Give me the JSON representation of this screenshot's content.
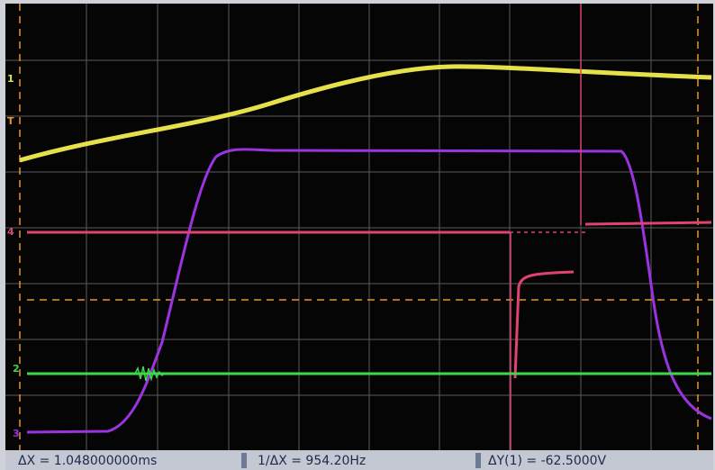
{
  "markers": {
    "ch1": "1",
    "trigger": "T",
    "ch4": "4",
    "ch2": "2",
    "ch3": "3"
  },
  "status_bar": {
    "delta_x": "ΔX = 1.048000000ms",
    "inverse_delta_x": "1/ΔX = 954.20Hz",
    "delta_y": "ΔY(1) = -62.5000V"
  }
}
